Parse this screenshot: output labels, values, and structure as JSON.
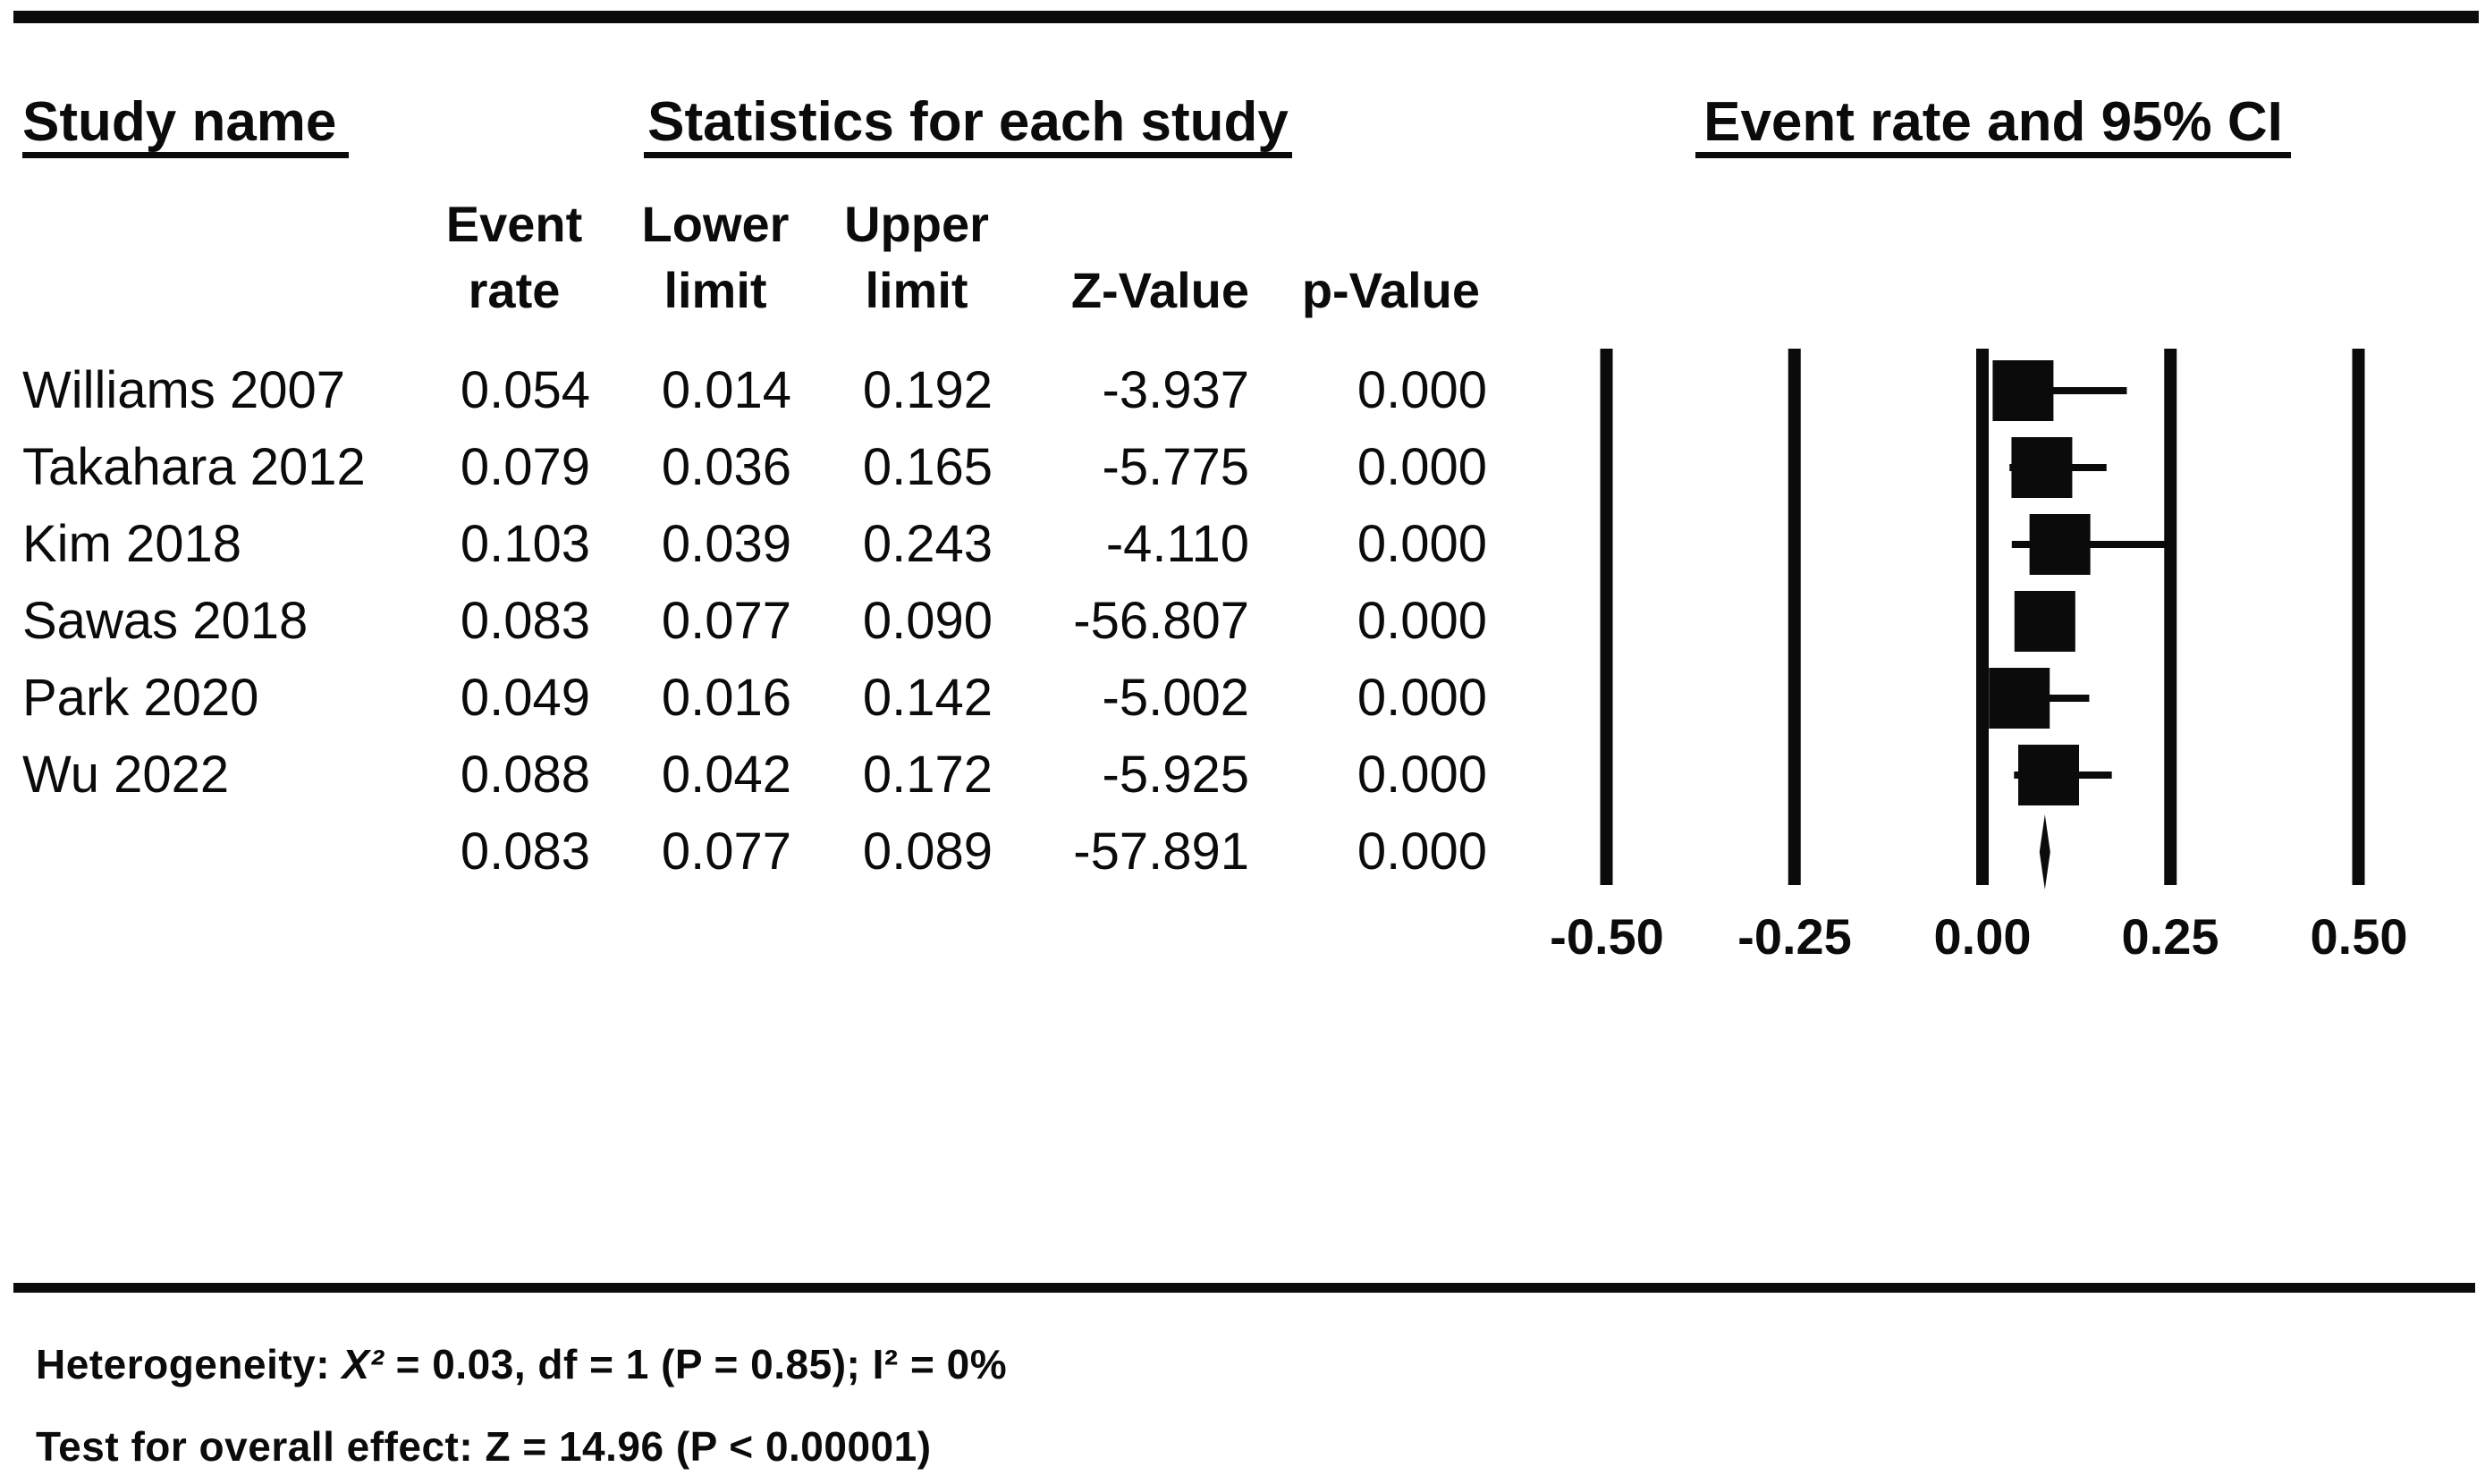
{
  "figure": {
    "headers": {
      "study_name": "Study name",
      "statistics": "Statistics for each study",
      "plot": "Event rate and 95% CI"
    },
    "columns": {
      "event_l1": "Event",
      "event_l2": "rate",
      "lower_l1": "Lower",
      "lower_l2": "limit",
      "upper_l1": "Upper",
      "upper_l2": "limit",
      "z": "Z-Value",
      "p": "p-Value"
    },
    "footer": {
      "het_prefix": "Heterogeneity: ",
      "het_chi": "X²",
      "het_rest": " = 0.03, df = 1 (P = 0.85); I² = 0%",
      "overall": "Test for overall effect: Z = 14.96 (P < 0.00001)"
    }
  },
  "chart_data": {
    "type": "forest",
    "effect_measure": "Event rate",
    "ci_level": "95% CI",
    "grid": true,
    "xlim": [
      -0.5,
      0.5
    ],
    "x_ticks": [
      {
        "label": "-0.50",
        "value": -0.5
      },
      {
        "label": "-0.25",
        "value": -0.25
      },
      {
        "label": "0.00",
        "value": 0.0
      },
      {
        "label": "0.25",
        "value": 0.25
      },
      {
        "label": "0.50",
        "value": 0.5
      }
    ],
    "studies": [
      {
        "name": "Williams 2007",
        "event_rate": "0.054",
        "lower_limit": "0.014",
        "upper_limit": "0.192",
        "z_value": "-3.937",
        "p_value": "0.000"
      },
      {
        "name": "Takahara 2012",
        "event_rate": "0.079",
        "lower_limit": "0.036",
        "upper_limit": "0.165",
        "z_value": "-5.775",
        "p_value": "0.000"
      },
      {
        "name": "Kim 2018",
        "event_rate": "0.103",
        "lower_limit": "0.039",
        "upper_limit": "0.243",
        "z_value": "-4.110",
        "p_value": "0.000"
      },
      {
        "name": "Sawas 2018",
        "event_rate": "0.083",
        "lower_limit": "0.077",
        "upper_limit": "0.090",
        "z_value": "-56.807",
        "p_value": "0.000"
      },
      {
        "name": "Park 2020",
        "event_rate": "0.049",
        "lower_limit": "0.016",
        "upper_limit": "0.142",
        "z_value": "-5.002",
        "p_value": "0.000"
      },
      {
        "name": "Wu 2022",
        "event_rate": "0.088",
        "lower_limit": "0.042",
        "upper_limit": "0.172",
        "z_value": "-5.925",
        "p_value": "0.000"
      }
    ],
    "summary": {
      "name": "",
      "event_rate": "0.083",
      "lower_limit": "0.077",
      "upper_limit": "0.089",
      "z_value": "-57.891",
      "p_value": "0.000"
    }
  }
}
